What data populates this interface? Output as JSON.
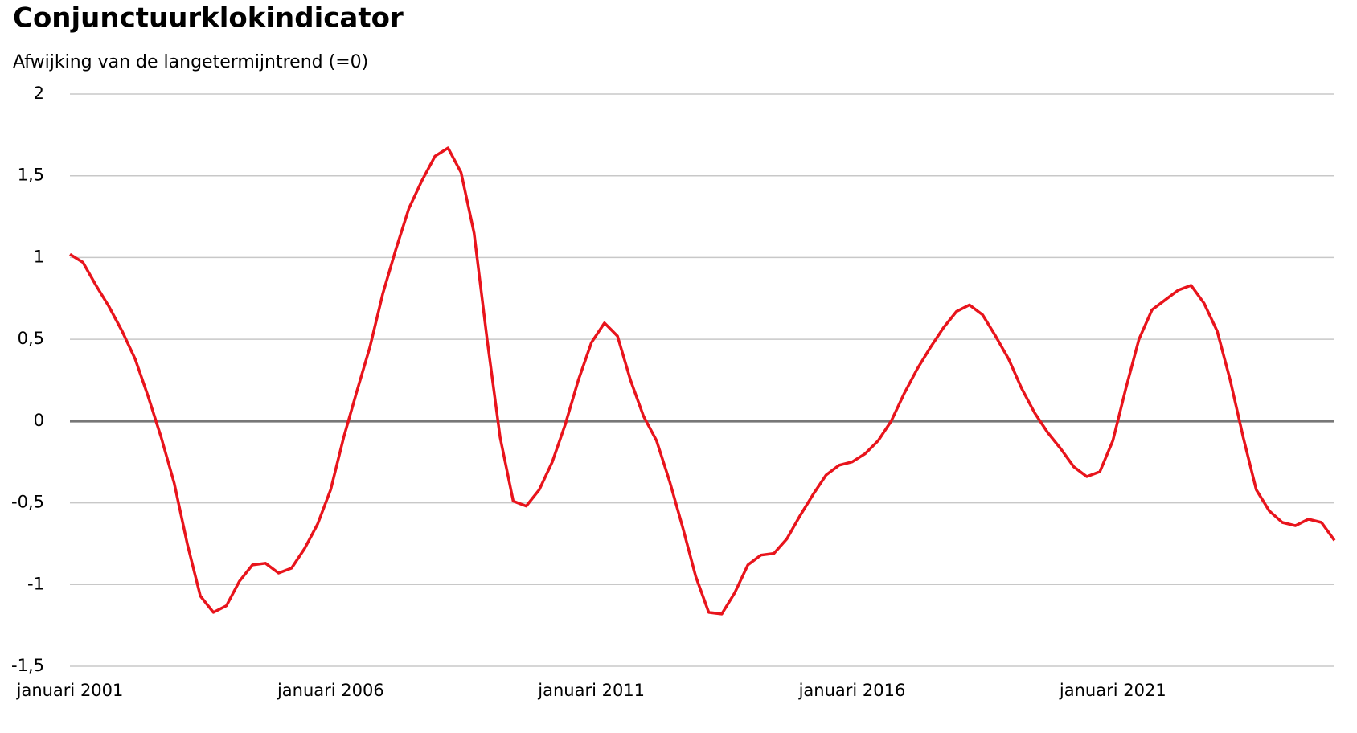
{
  "chart_data": {
    "type": "line",
    "title": "Conjunctuurklokindicator",
    "subtitle": "Afwijking van de langetermijntrend (=0)",
    "categories": [
      "januari 2001",
      null,
      null,
      null,
      null,
      null,
      null,
      null,
      null,
      null,
      null,
      null,
      null,
      null,
      null,
      null,
      null,
      null,
      null,
      null,
      "januari 2006",
      null,
      null,
      null,
      null,
      null,
      null,
      null,
      null,
      null,
      null,
      null,
      null,
      null,
      null,
      null,
      null,
      null,
      null,
      null,
      "januari 2011",
      null,
      null,
      null,
      null,
      null,
      null,
      null,
      null,
      null,
      null,
      null,
      null,
      null,
      null,
      null,
      null,
      null,
      null,
      null,
      "januari 2016",
      null,
      null,
      null,
      null,
      null,
      null,
      null,
      null,
      null,
      null,
      null,
      null,
      null,
      null,
      null,
      null,
      null,
      null,
      null,
      "januari 2021",
      null,
      null,
      null,
      null,
      null,
      null,
      null,
      null,
      null,
      null,
      null,
      null,
      null,
      null,
      null,
      null,
      null
    ],
    "values": [
      1.02,
      0.97,
      0.83,
      0.7,
      0.55,
      0.38,
      0.15,
      -0.1,
      -0.38,
      -0.75,
      -1.07,
      -1.17,
      -1.13,
      -0.98,
      -0.88,
      -0.87,
      -0.93,
      -0.9,
      -0.78,
      -0.63,
      -0.42,
      -0.1,
      0.18,
      0.45,
      0.78,
      1.05,
      1.3,
      1.47,
      1.62,
      1.67,
      1.52,
      1.15,
      0.5,
      -0.1,
      -0.49,
      -0.52,
      -0.42,
      -0.25,
      -0.02,
      0.25,
      0.48,
      0.6,
      0.52,
      0.25,
      0.03,
      -0.12,
      -0.37,
      -0.65,
      -0.95,
      -1.17,
      -1.18,
      -1.05,
      -0.88,
      -0.82,
      -0.81,
      -0.72,
      -0.58,
      -0.45,
      -0.33,
      -0.27,
      -0.25,
      -0.2,
      -0.12,
      0.0,
      0.17,
      0.32,
      0.45,
      0.57,
      0.67,
      0.71,
      0.65,
      0.52,
      0.38,
      0.2,
      0.05,
      -0.07,
      -0.17,
      -0.28,
      -0.34,
      -0.31,
      -0.12,
      0.2,
      0.5,
      0.68,
      0.74,
      0.8,
      0.83,
      0.72,
      0.55,
      0.25,
      -0.1,
      -0.42,
      -0.55,
      -0.62,
      -0.64,
      -0.6,
      -0.62,
      -0.73
    ],
    "color": "#e8141c",
    "ylim": [
      -1.5,
      2
    ],
    "yticks": [
      {
        "value": -1.5,
        "label": "-1,5"
      },
      -1,
      {
        "value": -0.5,
        "label": "-0,5"
      },
      0,
      {
        "value": 0.5,
        "label": "0,5"
      },
      1,
      {
        "value": 1.5,
        "label": "1,5"
      },
      2
    ],
    "grid": true
  }
}
